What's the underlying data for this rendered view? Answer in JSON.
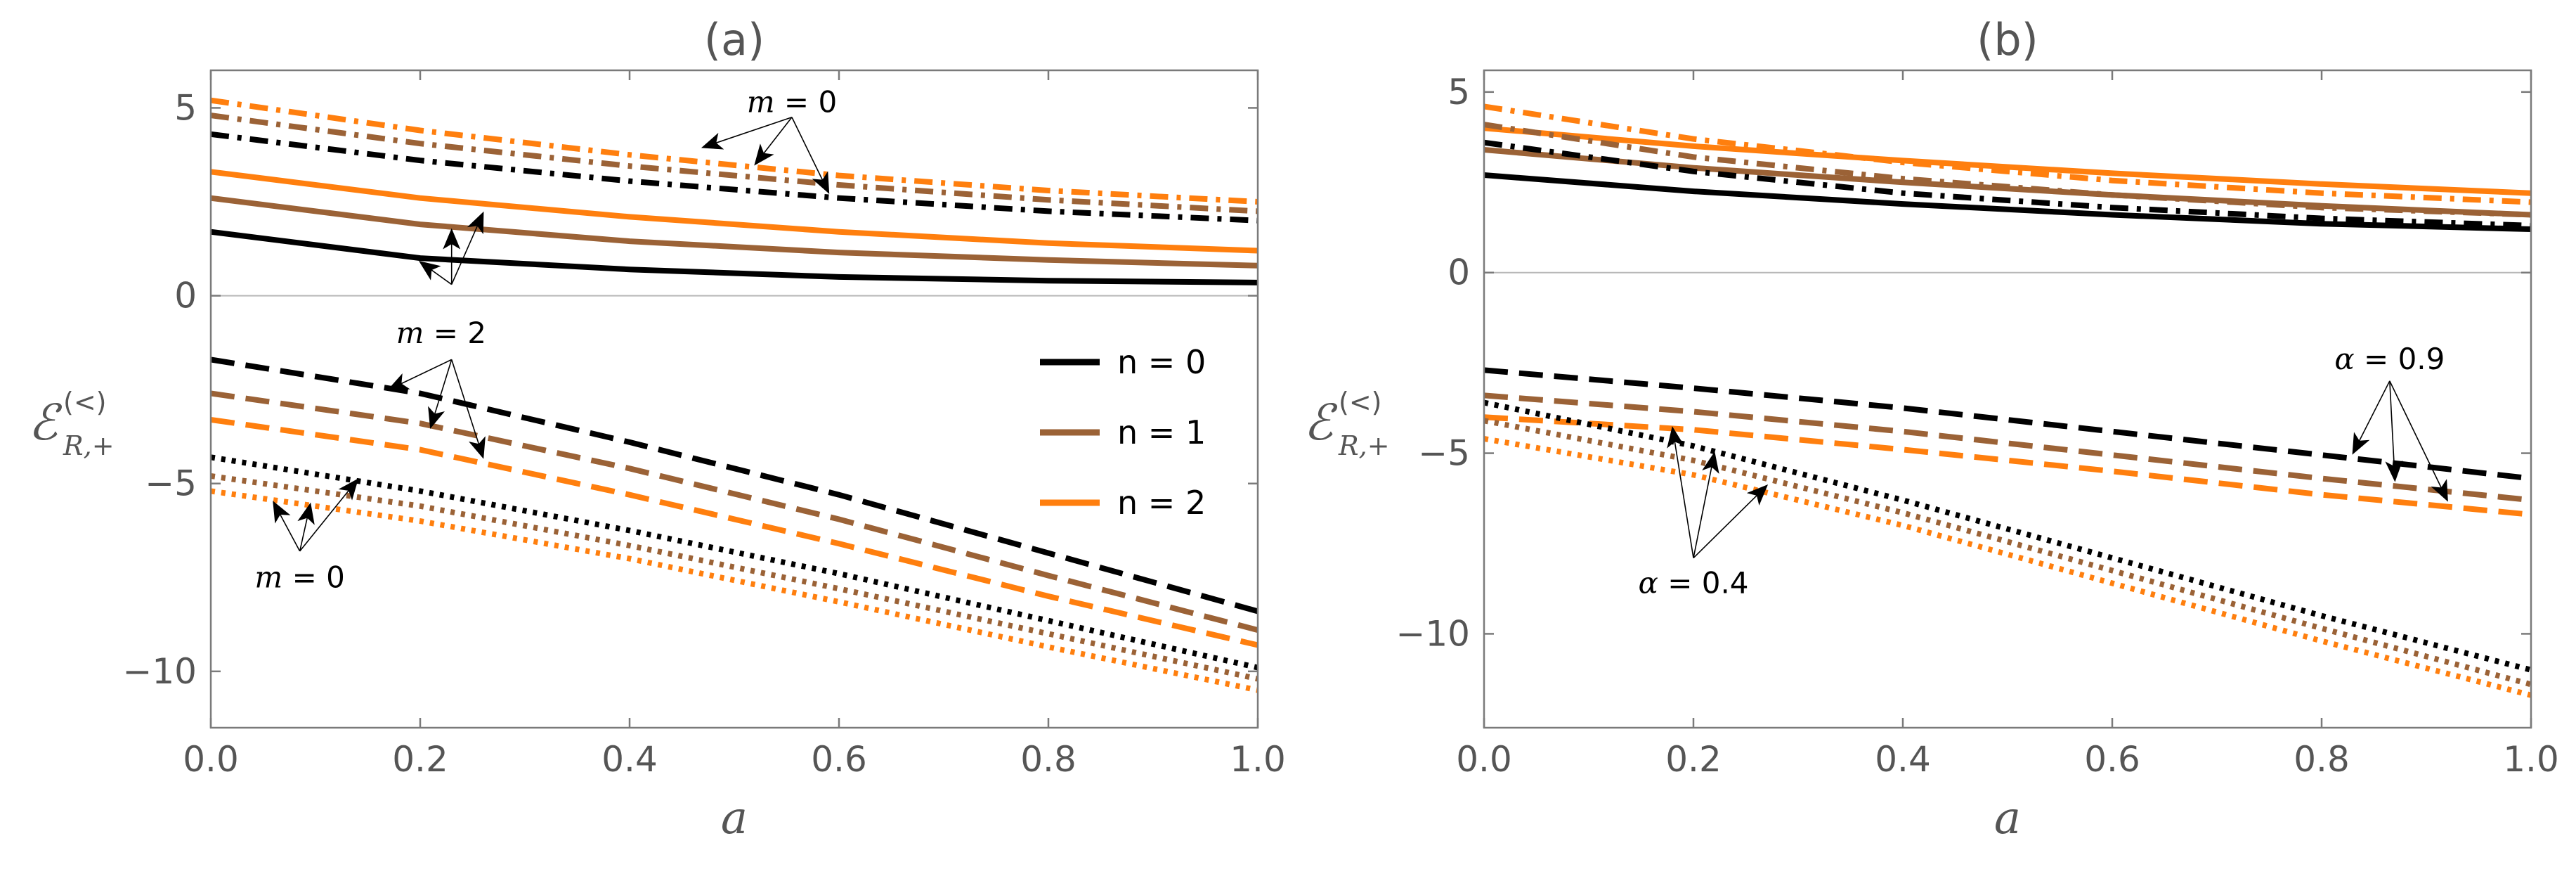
{
  "chart_data": [
    {
      "type": "line",
      "title": "(a)",
      "xlabel": "a",
      "ylabel": {
        "main": "ℰ",
        "sup": "(<)",
        "sub": "R,+"
      },
      "xlim": [
        0,
        1
      ],
      "ylim": [
        -11.5,
        6.0
      ],
      "xticks": [
        "0.0",
        "0.2",
        "0.4",
        "0.6",
        "0.8",
        "1.0"
      ],
      "yticks": [
        {
          "value": 5,
          "label": "5"
        },
        {
          "value": 0,
          "label": "0"
        },
        {
          "value": -5,
          "label": "−5"
        },
        {
          "value": -10,
          "label": "−10"
        }
      ],
      "zero_line": true,
      "legend": {
        "position": "center-right",
        "entries": [
          {
            "label": "n = 0",
            "color": "#000000"
          },
          {
            "label": "n = 1",
            "color": "#9b6236"
          },
          {
            "label": "n = 2",
            "color": "#ff7f0e"
          }
        ]
      },
      "series": [
        {
          "name": "n=0 m=2 solid",
          "color": "#000000",
          "style": "solid",
          "x": [
            0,
            0.2,
            0.4,
            0.6,
            0.8,
            1.0
          ],
          "values": [
            1.7,
            1.0,
            0.7,
            0.5,
            0.4,
            0.35
          ]
        },
        {
          "name": "n=1 m=2 solid",
          "color": "#9b6236",
          "style": "solid",
          "x": [
            0,
            0.2,
            0.4,
            0.6,
            0.8,
            1.0
          ],
          "values": [
            2.6,
            1.9,
            1.45,
            1.15,
            0.95,
            0.8
          ]
        },
        {
          "name": "n=2 m=2 solid",
          "color": "#ff7f0e",
          "style": "solid",
          "x": [
            0,
            0.2,
            0.4,
            0.6,
            0.8,
            1.0
          ],
          "values": [
            3.3,
            2.6,
            2.1,
            1.7,
            1.4,
            1.2
          ]
        },
        {
          "name": "n=0 m=0 dashdot",
          "color": "#000000",
          "style": "dashdot",
          "x": [
            0,
            0.2,
            0.4,
            0.6,
            0.8,
            1.0
          ],
          "values": [
            4.3,
            3.6,
            3.05,
            2.6,
            2.25,
            2.0
          ]
        },
        {
          "name": "n=1 m=0 dashdot",
          "color": "#9b6236",
          "style": "dashdot",
          "x": [
            0,
            0.2,
            0.4,
            0.6,
            0.8,
            1.0
          ],
          "values": [
            4.8,
            4.05,
            3.45,
            2.95,
            2.55,
            2.25
          ]
        },
        {
          "name": "n=2 m=0 dashdot",
          "color": "#ff7f0e",
          "style": "dashdot",
          "x": [
            0,
            0.2,
            0.4,
            0.6,
            0.8,
            1.0
          ],
          "values": [
            5.2,
            4.4,
            3.75,
            3.2,
            2.8,
            2.5
          ]
        },
        {
          "name": "n=0 m=2 dashed",
          "color": "#000000",
          "style": "dashed",
          "x": [
            0,
            0.2,
            0.4,
            0.6,
            0.8,
            1.0
          ],
          "values": [
            -1.7,
            -2.6,
            -3.9,
            -5.3,
            -6.85,
            -8.4
          ]
        },
        {
          "name": "n=1 m=2 dashed",
          "color": "#9b6236",
          "style": "dashed",
          "x": [
            0,
            0.2,
            0.4,
            0.6,
            0.8,
            1.0
          ],
          "values": [
            -2.6,
            -3.4,
            -4.6,
            -5.95,
            -7.45,
            -8.9
          ]
        },
        {
          "name": "n=2 m=2 dashed",
          "color": "#ff7f0e",
          "style": "dashed",
          "x": [
            0,
            0.2,
            0.4,
            0.6,
            0.8,
            1.0
          ],
          "values": [
            -3.3,
            -4.1,
            -5.3,
            -6.6,
            -8.0,
            -9.3
          ]
        },
        {
          "name": "n=0 m=0 dotted",
          "color": "#000000",
          "style": "dotted",
          "x": [
            0,
            0.2,
            0.4,
            0.6,
            0.8,
            1.0
          ],
          "values": [
            -4.3,
            -5.2,
            -6.25,
            -7.4,
            -8.65,
            -9.9
          ]
        },
        {
          "name": "n=1 m=0 dotted",
          "color": "#9b6236",
          "style": "dotted",
          "x": [
            0,
            0.2,
            0.4,
            0.6,
            0.8,
            1.0
          ],
          "values": [
            -4.8,
            -5.6,
            -6.65,
            -7.8,
            -9.0,
            -10.2
          ]
        },
        {
          "name": "n=2 m=0 dotted",
          "color": "#ff7f0e",
          "style": "dotted",
          "x": [
            0,
            0.2,
            0.4,
            0.6,
            0.8,
            1.0
          ],
          "values": [
            -5.2,
            -6.0,
            -7.0,
            -8.15,
            -9.35,
            -10.5
          ]
        }
      ],
      "annotations": [
        {
          "var": "m",
          "rest": " = 0",
          "label_at": [
            0.555,
            5.15
          ],
          "hub": [
            0.555,
            4.75
          ],
          "targets": [
            [
              0.47,
              3.95
            ],
            [
              0.52,
              3.5
            ],
            [
              0.59,
              2.75
            ]
          ]
        },
        {
          "var": "m",
          "rest": " = 2",
          "label_at": [
            0.22,
            -1.0
          ],
          "hub": [
            0.23,
            -1.7
          ],
          "targets": [
            [
              0.17,
              -2.5
            ],
            [
              0.21,
              -3.5
            ],
            [
              0.26,
              -4.3
            ]
          ]
        },
        {
          "var": "m",
          "rest": " = 2",
          "label_at": null,
          "hub": [
            0.23,
            0.3
          ],
          "targets": [
            [
              0.2,
              0.9
            ],
            [
              0.23,
              1.75
            ],
            [
              0.26,
              2.2
            ]
          ]
        },
        {
          "var": "m",
          "rest": " = 0",
          "label_at": [
            0.085,
            -7.5
          ],
          "hub": [
            0.085,
            -6.8
          ],
          "targets": [
            [
              0.06,
              -5.5
            ],
            [
              0.095,
              -5.55
            ],
            [
              0.14,
              -4.9
            ]
          ]
        }
      ]
    },
    {
      "type": "line",
      "title": "(b)",
      "xlabel": "a",
      "ylabel": {
        "main": "ℰ",
        "sup": "(<)",
        "sub": "R,+"
      },
      "xlim": [
        0,
        1
      ],
      "ylim": [
        -12.6,
        5.6
      ],
      "xticks": [
        "0.0",
        "0.2",
        "0.4",
        "0.6",
        "0.8",
        "1.0"
      ],
      "yticks": [
        {
          "value": 5,
          "label": "5"
        },
        {
          "value": 0,
          "label": "0"
        },
        {
          "value": -5,
          "label": "−5"
        },
        {
          "value": -10,
          "label": "−10"
        }
      ],
      "zero_line": true,
      "legend": null,
      "series": [
        {
          "name": "n=0 α=0.9 solid",
          "color": "#000000",
          "style": "solid",
          "x": [
            0,
            0.2,
            0.4,
            0.6,
            0.8,
            1.0
          ],
          "values": [
            2.7,
            2.25,
            1.9,
            1.6,
            1.35,
            1.2
          ]
        },
        {
          "name": "n=1 α=0.9 solid",
          "color": "#9b6236",
          "style": "solid",
          "x": [
            0,
            0.2,
            0.4,
            0.6,
            0.8,
            1.0
          ],
          "values": [
            3.4,
            2.9,
            2.5,
            2.15,
            1.85,
            1.6
          ]
        },
        {
          "name": "n=2 α=0.9 solid",
          "color": "#ff7f0e",
          "style": "solid",
          "x": [
            0,
            0.2,
            0.4,
            0.6,
            0.8,
            1.0
          ],
          "values": [
            4.0,
            3.5,
            3.1,
            2.75,
            2.45,
            2.2
          ]
        },
        {
          "name": "n=0 α=0.4 dashdot",
          "color": "#000000",
          "style": "dashdot",
          "x": [
            0,
            0.2,
            0.4,
            0.6,
            0.8,
            1.0
          ],
          "values": [
            3.6,
            2.8,
            2.2,
            1.8,
            1.5,
            1.3
          ]
        },
        {
          "name": "n=1 α=0.4 dashdot",
          "color": "#9b6236",
          "style": "dashdot",
          "x": [
            0,
            0.2,
            0.4,
            0.6,
            0.8,
            1.0
          ],
          "values": [
            4.1,
            3.2,
            2.6,
            2.15,
            1.8,
            1.6
          ]
        },
        {
          "name": "n=2 α=0.4 dashdot",
          "color": "#ff7f0e",
          "style": "dashdot",
          "x": [
            0,
            0.2,
            0.4,
            0.6,
            0.8,
            1.0
          ],
          "values": [
            4.6,
            3.7,
            3.05,
            2.55,
            2.2,
            1.95
          ]
        },
        {
          "name": "n=0 α=0.9 dashed",
          "color": "#000000",
          "style": "dashed",
          "x": [
            0,
            0.2,
            0.4,
            0.6,
            0.8,
            1.0
          ],
          "values": [
            -2.7,
            -3.2,
            -3.75,
            -4.4,
            -5.05,
            -5.7
          ]
        },
        {
          "name": "n=1 α=0.9 dashed",
          "color": "#9b6236",
          "style": "dashed",
          "x": [
            0,
            0.2,
            0.4,
            0.6,
            0.8,
            1.0
          ],
          "values": [
            -3.4,
            -3.85,
            -4.4,
            -5.05,
            -5.7,
            -6.3
          ]
        },
        {
          "name": "n=2 α=0.9 dashed",
          "color": "#ff7f0e",
          "style": "dashed",
          "x": [
            0,
            0.2,
            0.4,
            0.6,
            0.8,
            1.0
          ],
          "values": [
            -4.0,
            -4.35,
            -4.9,
            -5.5,
            -6.15,
            -6.7
          ]
        },
        {
          "name": "n=0 α=0.4 dotted",
          "color": "#000000",
          "style": "dotted",
          "x": [
            0,
            0.2,
            0.4,
            0.6,
            0.8,
            1.0
          ],
          "values": [
            -3.6,
            -4.8,
            -6.3,
            -7.9,
            -9.5,
            -11.0
          ]
        },
        {
          "name": "n=1 α=0.4 dotted",
          "color": "#9b6236",
          "style": "dotted",
          "x": [
            0,
            0.2,
            0.4,
            0.6,
            0.8,
            1.0
          ],
          "values": [
            -4.1,
            -5.2,
            -6.65,
            -8.25,
            -9.85,
            -11.4
          ]
        },
        {
          "name": "n=2 α=0.4 dotted",
          "color": "#ff7f0e",
          "style": "dotted",
          "x": [
            0,
            0.2,
            0.4,
            0.6,
            0.8,
            1.0
          ],
          "values": [
            -4.6,
            -5.6,
            -7.0,
            -8.6,
            -10.2,
            -11.7
          ]
        }
      ],
      "annotations": [
        {
          "var": "α",
          "rest": " = 0.9",
          "label_at": [
            0.865,
            -2.4
          ],
          "hub": [
            0.865,
            -3.0
          ],
          "targets": [
            [
              0.83,
              -5.0
            ],
            [
              0.87,
              -5.75
            ],
            [
              0.92,
              -6.3
            ]
          ]
        },
        {
          "var": "α",
          "rest": " = 0.4",
          "label_at": [
            0.2,
            -8.6
          ],
          "hub": [
            0.2,
            -7.9
          ],
          "targets": [
            [
              0.18,
              -4.3
            ],
            [
              0.22,
              -5.0
            ],
            [
              0.27,
              -5.9
            ]
          ]
        }
      ]
    }
  ]
}
